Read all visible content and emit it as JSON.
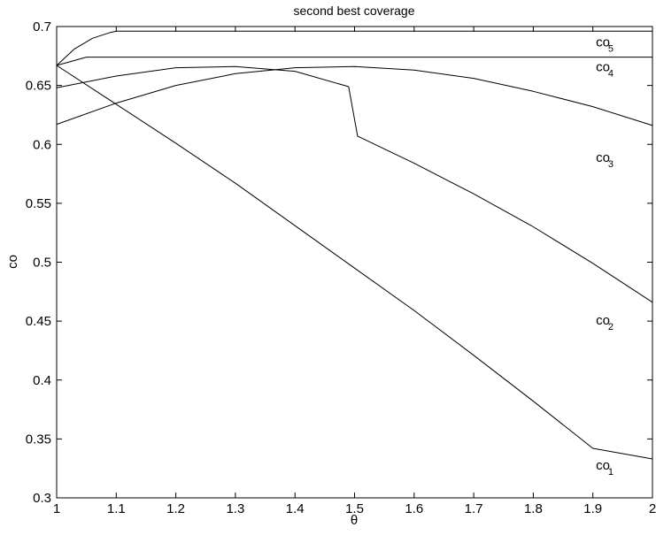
{
  "chart_data": {
    "type": "line",
    "title": "second best coverage",
    "xlabel": "θ",
    "ylabel": "co",
    "xlim": [
      1,
      2
    ],
    "ylim": [
      0.3,
      0.7
    ],
    "grid": false,
    "legend": "none",
    "xticks": [
      "1",
      "1.1",
      "1.2",
      "1.3",
      "1.4",
      "1.5",
      "1.6",
      "1.7",
      "1.8",
      "1.9",
      "2"
    ],
    "yticks": [
      "0.3",
      "0.35",
      "0.4",
      "0.45",
      "0.5",
      "0.55",
      "0.6",
      "0.65",
      "0.7"
    ],
    "xtick_values": [
      1,
      1.1,
      1.2,
      1.3,
      1.4,
      1.5,
      1.6,
      1.7,
      1.8,
      1.9,
      2
    ],
    "ytick_values": [
      0.3,
      0.35,
      0.4,
      0.45,
      0.5,
      0.55,
      0.6,
      0.65,
      0.7
    ],
    "series": [
      {
        "label_base": "co",
        "label_sub": "1",
        "label_at": [
          1.905,
          0.324
        ],
        "x": [
          1,
          1.1,
          1.2,
          1.3,
          1.4,
          1.5,
          1.6,
          1.7,
          1.8,
          1.9,
          2
        ],
        "y": [
          0.667,
          0.634,
          0.601,
          0.567,
          0.531,
          0.495,
          0.459,
          0.421,
          0.382,
          0.342,
          0.333
        ]
      },
      {
        "label_base": "co",
        "label_sub": "2",
        "label_at": [
          1.905,
          0.447
        ],
        "x": [
          1,
          1.1,
          1.2,
          1.3,
          1.4,
          1.49,
          1.505,
          1.6,
          1.7,
          1.8,
          1.9,
          2
        ],
        "y": [
          0.648,
          0.658,
          0.665,
          0.666,
          0.662,
          0.649,
          0.607,
          0.584,
          0.558,
          0.53,
          0.499,
          0.466
        ]
      },
      {
        "label_base": "co",
        "label_sub": "3",
        "label_at": [
          1.905,
          0.585
        ],
        "x": [
          1,
          1.1,
          1.2,
          1.3,
          1.4,
          1.5,
          1.6,
          1.7,
          1.8,
          1.9,
          2
        ],
        "y": [
          0.617,
          0.635,
          0.65,
          0.66,
          0.665,
          0.666,
          0.663,
          0.656,
          0.645,
          0.632,
          0.616
        ]
      },
      {
        "label_base": "co",
        "label_sub": "4",
        "label_at": [
          1.905,
          0.662
        ],
        "x": [
          1,
          1.05,
          1.1,
          1.2,
          1.5,
          2
        ],
        "y": [
          0.667,
          0.674,
          0.674,
          0.674,
          0.674,
          0.674
        ]
      },
      {
        "label_base": "co",
        "label_sub": "5",
        "label_at": [
          1.905,
          0.683
        ],
        "x": [
          1,
          1.03,
          1.06,
          1.09,
          1.1,
          1.5,
          2
        ],
        "y": [
          0.667,
          0.681,
          0.69,
          0.695,
          0.696,
          0.696,
          0.696
        ]
      }
    ]
  }
}
